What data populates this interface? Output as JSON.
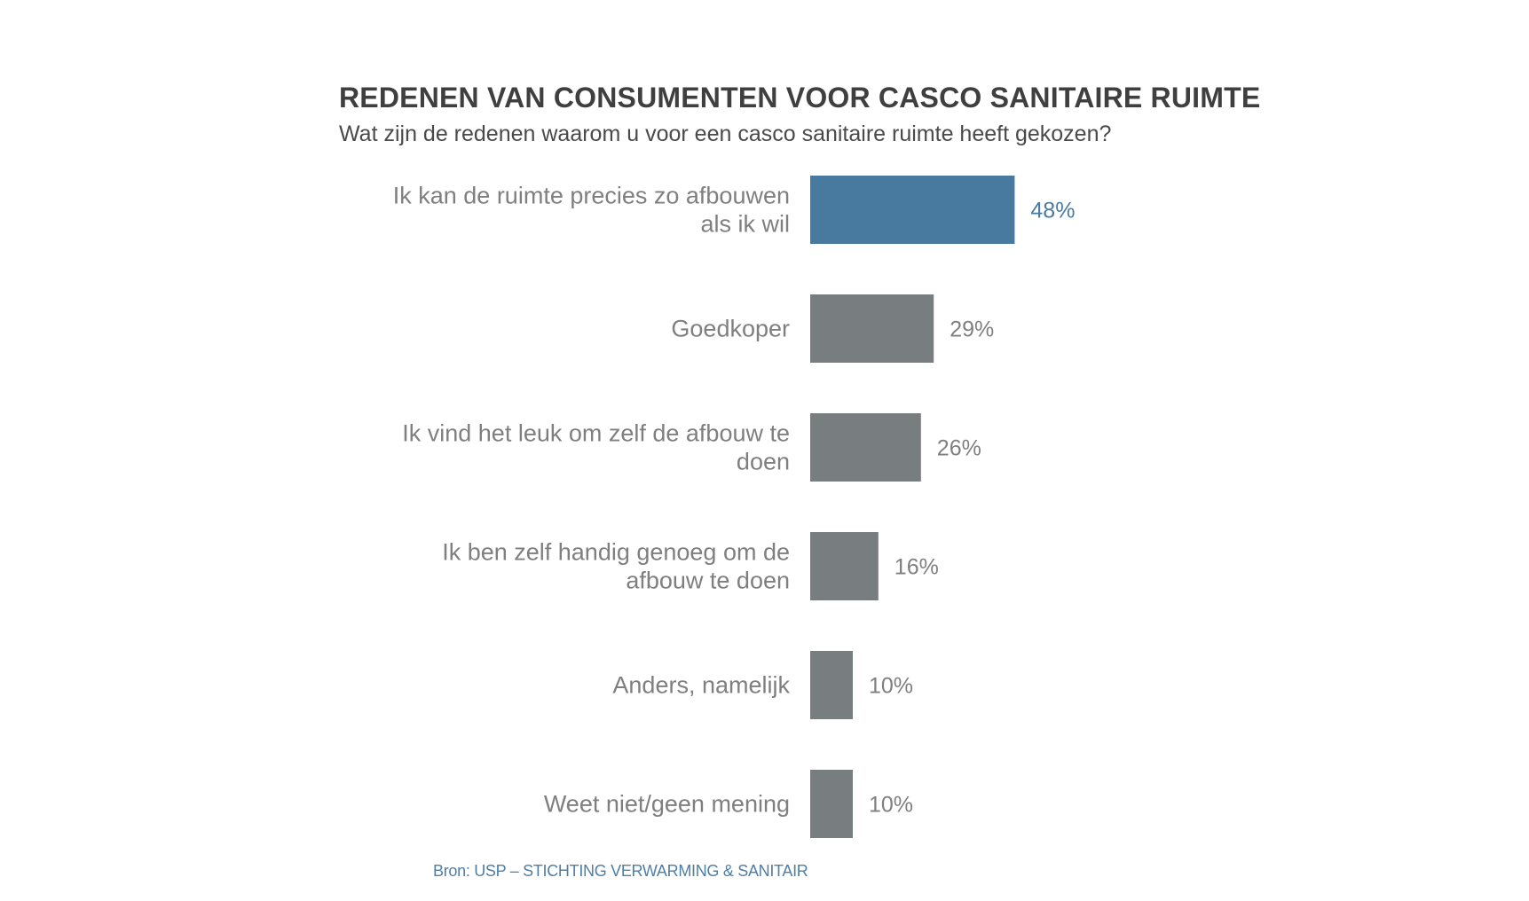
{
  "colors": {
    "highlight": "#487aa0",
    "bar": "#787d80",
    "source_text": "#4f7fa6"
  },
  "source": "Bron: USP – STICHTING VERWARMING & SANITAIR",
  "chart_data": {
    "type": "bar",
    "orientation": "horizontal",
    "title": "REDENEN VAN CONSUMENTEN VOOR CASCO SANITAIRE RUIMTE",
    "subtitle": "Wat zijn de redenen waarom u voor een casco sanitaire ruimte heeft gekozen?",
    "categories": [
      [
        "Ik kan de ruimte precies zo afbouwen",
        "als ik wil"
      ],
      [
        "Goedkoper"
      ],
      [
        "Ik vind het leuk om zelf de afbouw te",
        "doen"
      ],
      [
        "Ik ben zelf handig genoeg om de",
        "afbouw te doen"
      ],
      [
        "Anders, namelijk"
      ],
      [
        "Weet niet/geen mening"
      ]
    ],
    "values": [
      48,
      29,
      26,
      16,
      10,
      10
    ],
    "value_labels": [
      "48%",
      "29%",
      "26%",
      "16%",
      "10%",
      "10%"
    ],
    "highlight_index": 0,
    "grid": false,
    "legend": "none"
  }
}
